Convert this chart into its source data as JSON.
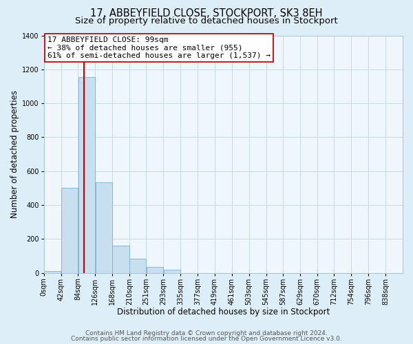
{
  "title": "17, ABBEYFIELD CLOSE, STOCKPORT, SK3 8EH",
  "subtitle": "Size of property relative to detached houses in Stockport",
  "xlabel": "Distribution of detached houses by size in Stockport",
  "ylabel": "Number of detached properties",
  "bar_left_edges": [
    0,
    42,
    84,
    126,
    168,
    210,
    251,
    293,
    335,
    377,
    419,
    461,
    503,
    545,
    587,
    629,
    670,
    712,
    754,
    796
  ],
  "bar_widths": [
    42,
    42,
    42,
    42,
    42,
    41,
    42,
    42,
    42,
    42,
    42,
    42,
    42,
    42,
    42,
    41,
    42,
    42,
    42,
    42
  ],
  "bar_heights": [
    10,
    500,
    1155,
    535,
    160,
    85,
    35,
    20,
    0,
    0,
    0,
    0,
    0,
    0,
    0,
    0,
    0,
    0,
    0,
    0
  ],
  "bar_color": "#c8dff0",
  "bar_edge_color": "#7ab0d0",
  "tick_labels": [
    "0sqm",
    "42sqm",
    "84sqm",
    "126sqm",
    "168sqm",
    "210sqm",
    "251sqm",
    "293sqm",
    "335sqm",
    "377sqm",
    "419sqm",
    "461sqm",
    "503sqm",
    "545sqm",
    "587sqm",
    "629sqm",
    "670sqm",
    "712sqm",
    "754sqm",
    "796sqm",
    "838sqm"
  ],
  "ylim": [
    0,
    1400
  ],
  "yticks": [
    0,
    200,
    400,
    600,
    800,
    1000,
    1200,
    1400
  ],
  "xlim_max": 880,
  "property_line_x": 99,
  "property_line_color": "#cc0000",
  "annotation_line1": "17 ABBEYFIELD CLOSE: 99sqm",
  "annotation_line2": "← 38% of detached houses are smaller (955)",
  "annotation_line3": "61% of semi-detached houses are larger (1,537) →",
  "annotation_box_color": "#ffffff",
  "annotation_box_edge": "#cc0000",
  "bg_color": "#ddeef8",
  "plot_bg_color": "#f0f7fc",
  "grid_color": "#c5daea",
  "title_fontsize": 10.5,
  "subtitle_fontsize": 9.5,
  "axis_label_fontsize": 8.5,
  "tick_fontsize": 7,
  "annotation_fontsize": 8,
  "footer_fontsize": 6.5,
  "footer_line1": "Contains HM Land Registry data © Crown copyright and database right 2024.",
  "footer_line2": "Contains public sector information licensed under the Open Government Licence v3.0."
}
